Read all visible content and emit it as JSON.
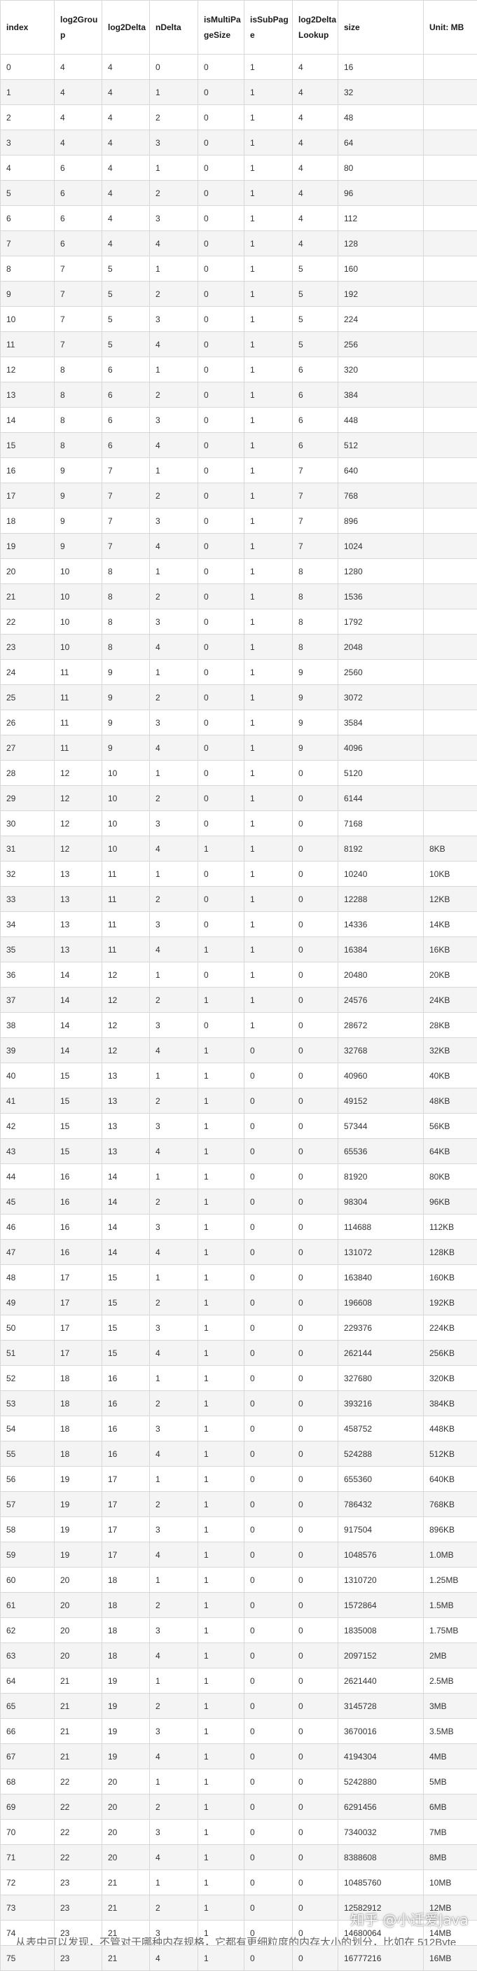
{
  "table": {
    "headers": [
      "index",
      "log2Group",
      "log2Delta",
      "nDelta",
      "isMultiPageSize",
      "isSubPage",
      "log2DeltaLookup",
      "size",
      "Unit: MB"
    ],
    "rows": [
      [
        "0",
        "4",
        "4",
        "0",
        "0",
        "1",
        "4",
        "16",
        ""
      ],
      [
        "1",
        "4",
        "4",
        "1",
        "0",
        "1",
        "4",
        "32",
        ""
      ],
      [
        "2",
        "4",
        "4",
        "2",
        "0",
        "1",
        "4",
        "48",
        ""
      ],
      [
        "3",
        "4",
        "4",
        "3",
        "0",
        "1",
        "4",
        "64",
        ""
      ],
      [
        "4",
        "6",
        "4",
        "1",
        "0",
        "1",
        "4",
        "80",
        ""
      ],
      [
        "5",
        "6",
        "4",
        "2",
        "0",
        "1",
        "4",
        "96",
        ""
      ],
      [
        "6",
        "6",
        "4",
        "3",
        "0",
        "1",
        "4",
        "112",
        ""
      ],
      [
        "7",
        "6",
        "4",
        "4",
        "0",
        "1",
        "4",
        "128",
        ""
      ],
      [
        "8",
        "7",
        "5",
        "1",
        "0",
        "1",
        "5",
        "160",
        ""
      ],
      [
        "9",
        "7",
        "5",
        "2",
        "0",
        "1",
        "5",
        "192",
        ""
      ],
      [
        "10",
        "7",
        "5",
        "3",
        "0",
        "1",
        "5",
        "224",
        ""
      ],
      [
        "11",
        "7",
        "5",
        "4",
        "0",
        "1",
        "5",
        "256",
        ""
      ],
      [
        "12",
        "8",
        "6",
        "1",
        "0",
        "1",
        "6",
        "320",
        ""
      ],
      [
        "13",
        "8",
        "6",
        "2",
        "0",
        "1",
        "6",
        "384",
        ""
      ],
      [
        "14",
        "8",
        "6",
        "3",
        "0",
        "1",
        "6",
        "448",
        ""
      ],
      [
        "15",
        "8",
        "6",
        "4",
        "0",
        "1",
        "6",
        "512",
        ""
      ],
      [
        "16",
        "9",
        "7",
        "1",
        "0",
        "1",
        "7",
        "640",
        ""
      ],
      [
        "17",
        "9",
        "7",
        "2",
        "0",
        "1",
        "7",
        "768",
        ""
      ],
      [
        "18",
        "9",
        "7",
        "3",
        "0",
        "1",
        "7",
        "896",
        ""
      ],
      [
        "19",
        "9",
        "7",
        "4",
        "0",
        "1",
        "7",
        "1024",
        ""
      ],
      [
        "20",
        "10",
        "8",
        "1",
        "0",
        "1",
        "8",
        "1280",
        ""
      ],
      [
        "21",
        "10",
        "8",
        "2",
        "0",
        "1",
        "8",
        "1536",
        ""
      ],
      [
        "22",
        "10",
        "8",
        "3",
        "0",
        "1",
        "8",
        "1792",
        ""
      ],
      [
        "23",
        "10",
        "8",
        "4",
        "0",
        "1",
        "8",
        "2048",
        ""
      ],
      [
        "24",
        "11",
        "9",
        "1",
        "0",
        "1",
        "9",
        "2560",
        ""
      ],
      [
        "25",
        "11",
        "9",
        "2",
        "0",
        "1",
        "9",
        "3072",
        ""
      ],
      [
        "26",
        "11",
        "9",
        "3",
        "0",
        "1",
        "9",
        "3584",
        ""
      ],
      [
        "27",
        "11",
        "9",
        "4",
        "0",
        "1",
        "9",
        "4096",
        ""
      ],
      [
        "28",
        "12",
        "10",
        "1",
        "0",
        "1",
        "0",
        "5120",
        ""
      ],
      [
        "29",
        "12",
        "10",
        "2",
        "0",
        "1",
        "0",
        "6144",
        ""
      ],
      [
        "30",
        "12",
        "10",
        "3",
        "0",
        "1",
        "0",
        "7168",
        ""
      ],
      [
        "31",
        "12",
        "10",
        "4",
        "1",
        "1",
        "0",
        "8192",
        "8KB"
      ],
      [
        "32",
        "13",
        "11",
        "1",
        "0",
        "1",
        "0",
        "10240",
        "10KB"
      ],
      [
        "33",
        "13",
        "11",
        "2",
        "0",
        "1",
        "0",
        "12288",
        "12KB"
      ],
      [
        "34",
        "13",
        "11",
        "3",
        "0",
        "1",
        "0",
        "14336",
        "14KB"
      ],
      [
        "35",
        "13",
        "11",
        "4",
        "1",
        "1",
        "0",
        "16384",
        "16KB"
      ],
      [
        "36",
        "14",
        "12",
        "1",
        "0",
        "1",
        "0",
        "20480",
        "20KB"
      ],
      [
        "37",
        "14",
        "12",
        "2",
        "1",
        "1",
        "0",
        "24576",
        "24KB"
      ],
      [
        "38",
        "14",
        "12",
        "3",
        "0",
        "1",
        "0",
        "28672",
        "28KB"
      ],
      [
        "39",
        "14",
        "12",
        "4",
        "1",
        "0",
        "0",
        "32768",
        "32KB"
      ],
      [
        "40",
        "15",
        "13",
        "1",
        "1",
        "0",
        "0",
        "40960",
        "40KB"
      ],
      [
        "41",
        "15",
        "13",
        "2",
        "1",
        "0",
        "0",
        "49152",
        "48KB"
      ],
      [
        "42",
        "15",
        "13",
        "3",
        "1",
        "0",
        "0",
        "57344",
        "56KB"
      ],
      [
        "43",
        "15",
        "13",
        "4",
        "1",
        "0",
        "0",
        "65536",
        "64KB"
      ],
      [
        "44",
        "16",
        "14",
        "1",
        "1",
        "0",
        "0",
        "81920",
        "80KB"
      ],
      [
        "45",
        "16",
        "14",
        "2",
        "1",
        "0",
        "0",
        "98304",
        "96KB"
      ],
      [
        "46",
        "16",
        "14",
        "3",
        "1",
        "0",
        "0",
        "114688",
        "112KB"
      ],
      [
        "47",
        "16",
        "14",
        "4",
        "1",
        "0",
        "0",
        "131072",
        "128KB"
      ],
      [
        "48",
        "17",
        "15",
        "1",
        "1",
        "0",
        "0",
        "163840",
        "160KB"
      ],
      [
        "49",
        "17",
        "15",
        "2",
        "1",
        "0",
        "0",
        "196608",
        "192KB"
      ],
      [
        "50",
        "17",
        "15",
        "3",
        "1",
        "0",
        "0",
        "229376",
        "224KB"
      ],
      [
        "51",
        "17",
        "15",
        "4",
        "1",
        "0",
        "0",
        "262144",
        "256KB"
      ],
      [
        "52",
        "18",
        "16",
        "1",
        "1",
        "0",
        "0",
        "327680",
        "320KB"
      ],
      [
        "53",
        "18",
        "16",
        "2",
        "1",
        "0",
        "0",
        "393216",
        "384KB"
      ],
      [
        "54",
        "18",
        "16",
        "3",
        "1",
        "0",
        "0",
        "458752",
        "448KB"
      ],
      [
        "55",
        "18",
        "16",
        "4",
        "1",
        "0",
        "0",
        "524288",
        "512KB"
      ],
      [
        "56",
        "19",
        "17",
        "1",
        "1",
        "0",
        "0",
        "655360",
        "640KB"
      ],
      [
        "57",
        "19",
        "17",
        "2",
        "1",
        "0",
        "0",
        "786432",
        "768KB"
      ],
      [
        "58",
        "19",
        "17",
        "3",
        "1",
        "0",
        "0",
        "917504",
        "896KB"
      ],
      [
        "59",
        "19",
        "17",
        "4",
        "1",
        "0",
        "0",
        "1048576",
        "1.0MB"
      ],
      [
        "60",
        "20",
        "18",
        "1",
        "1",
        "0",
        "0",
        "1310720",
        "1.25MB"
      ],
      [
        "61",
        "20",
        "18",
        "2",
        "1",
        "0",
        "0",
        "1572864",
        "1.5MB"
      ],
      [
        "62",
        "20",
        "18",
        "3",
        "1",
        "0",
        "0",
        "1835008",
        "1.75MB"
      ],
      [
        "63",
        "20",
        "18",
        "4",
        "1",
        "0",
        "0",
        "2097152",
        "2MB"
      ],
      [
        "64",
        "21",
        "19",
        "1",
        "1",
        "0",
        "0",
        "2621440",
        "2.5MB"
      ],
      [
        "65",
        "21",
        "19",
        "2",
        "1",
        "0",
        "0",
        "3145728",
        "3MB"
      ],
      [
        "66",
        "21",
        "19",
        "3",
        "1",
        "0",
        "0",
        "3670016",
        "3.5MB"
      ],
      [
        "67",
        "21",
        "19",
        "4",
        "1",
        "0",
        "0",
        "4194304",
        "4MB"
      ],
      [
        "68",
        "22",
        "20",
        "1",
        "1",
        "0",
        "0",
        "5242880",
        "5MB"
      ],
      [
        "69",
        "22",
        "20",
        "2",
        "1",
        "0",
        "0",
        "6291456",
        "6MB"
      ],
      [
        "70",
        "22",
        "20",
        "3",
        "1",
        "0",
        "0",
        "7340032",
        "7MB"
      ],
      [
        "71",
        "22",
        "20",
        "4",
        "1",
        "0",
        "0",
        "8388608",
        "8MB"
      ],
      [
        "72",
        "23",
        "21",
        "1",
        "1",
        "0",
        "0",
        "10485760",
        "10MB"
      ],
      [
        "73",
        "23",
        "21",
        "2",
        "1",
        "0",
        "0",
        "12582912",
        "12MB"
      ],
      [
        "74",
        "23",
        "21",
        "3",
        "1",
        "0",
        "0",
        "14680064",
        "14MB"
      ],
      [
        "75",
        "23",
        "21",
        "4",
        "1",
        "0",
        "0",
        "16777216",
        "16MB"
      ]
    ]
  },
  "watermark": "知乎 @小迁爱Java",
  "footer": {
    "text": "从表中可以发现，不管对于哪种内存规格，它都有更细粒度的内存大小的划分，比如在 512Byte"
  }
}
